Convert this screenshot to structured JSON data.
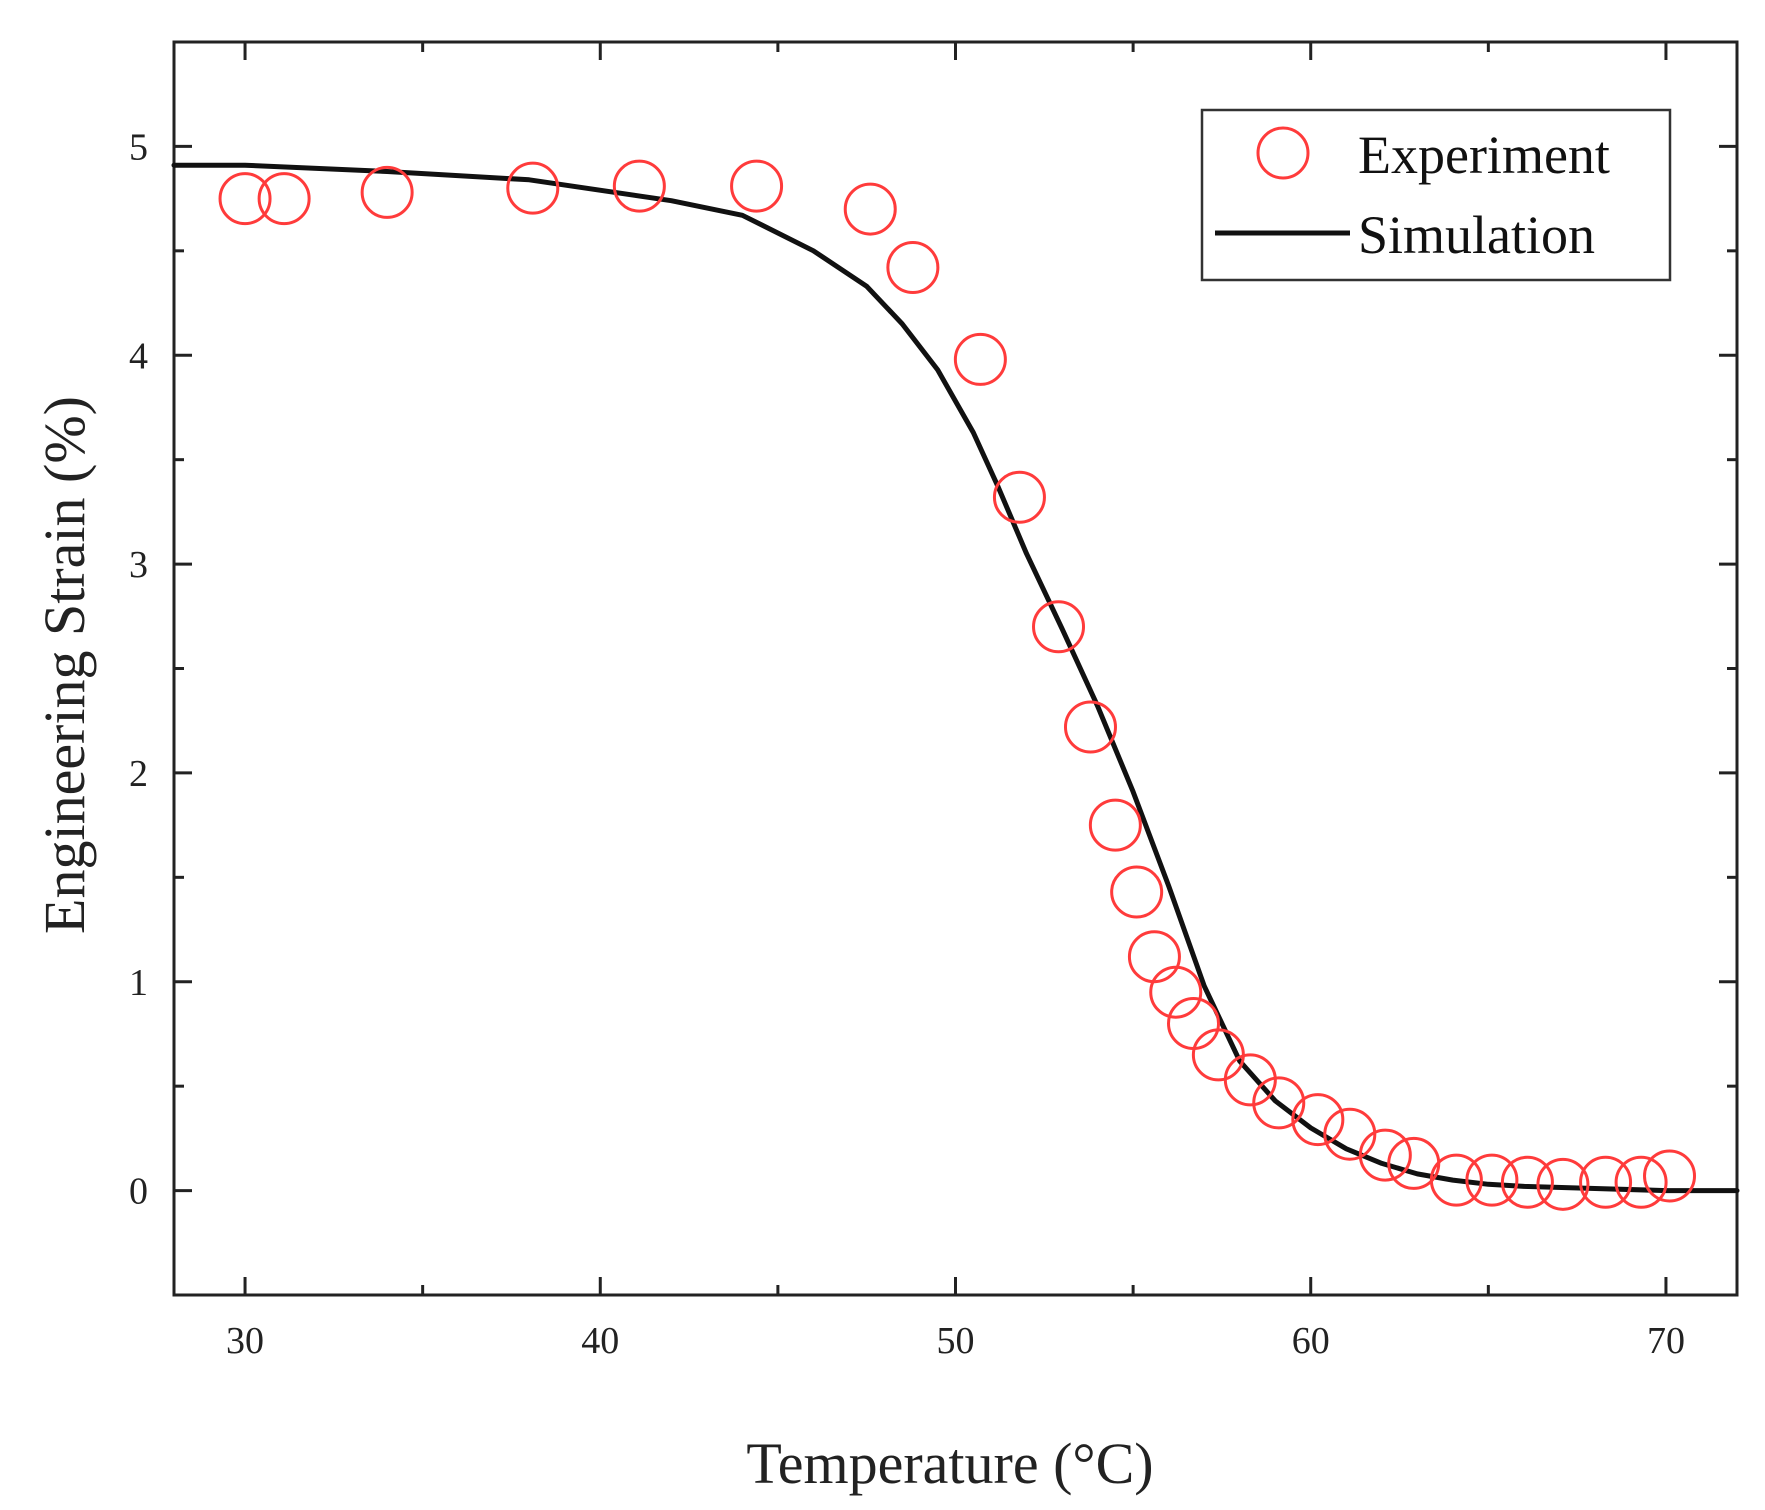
{
  "chart_data": {
    "type": "scatter",
    "title": "",
    "xlabel": "Temperature (°C)",
    "ylabel": "Engineering Strain (%)",
    "xlim": [
      28,
      72
    ],
    "ylim": [
      -0.5,
      5.5
    ],
    "xticks": [
      30,
      40,
      50,
      60,
      70
    ],
    "yticks": [
      0,
      1,
      2,
      3,
      4,
      5
    ],
    "x_minor_step": 5,
    "y_minor_step": 0.5,
    "grid": false,
    "legend_position": "top-right",
    "series": [
      {
        "name": "Experiment",
        "kind": "scatter",
        "marker": "open-circle",
        "color": "#ff3b3b",
        "x": [
          30,
          31.1,
          34,
          38.1,
          41.1,
          44.4,
          47.6,
          48.8,
          50.7,
          51.8,
          52.9,
          53.8,
          54.5,
          55.1,
          55.6,
          56.2,
          56.7,
          57.4,
          58.3,
          59.1,
          60.2,
          61.1,
          62.1,
          62.9,
          64.1,
          65.1,
          66.1,
          67.1,
          68.3,
          69.3,
          70.1
        ],
        "y": [
          4.75,
          4.75,
          4.78,
          4.8,
          4.81,
          4.81,
          4.7,
          4.42,
          3.98,
          3.32,
          2.7,
          2.22,
          1.75,
          1.43,
          1.12,
          0.95,
          0.8,
          0.65,
          0.53,
          0.42,
          0.34,
          0.27,
          0.17,
          0.13,
          0.05,
          0.05,
          0.04,
          0.03,
          0.04,
          0.04,
          0.07
        ]
      },
      {
        "name": "Simulation",
        "kind": "line",
        "color": "#111111",
        "x": [
          28,
          30,
          34,
          38,
          42,
          44,
          46,
          47.5,
          48.5,
          49.5,
          50.5,
          51.2,
          52,
          53,
          54,
          55,
          56,
          57,
          58,
          59,
          60,
          61,
          62,
          63,
          64,
          65,
          66,
          68,
          70,
          72
        ],
        "y": [
          4.91,
          4.91,
          4.88,
          4.84,
          4.74,
          4.67,
          4.5,
          4.33,
          4.15,
          3.93,
          3.63,
          3.37,
          3.05,
          2.69,
          2.32,
          1.91,
          1.46,
          0.98,
          0.62,
          0.43,
          0.3,
          0.2,
          0.13,
          0.08,
          0.05,
          0.03,
          0.02,
          0.01,
          0,
          0
        ]
      }
    ]
  }
}
